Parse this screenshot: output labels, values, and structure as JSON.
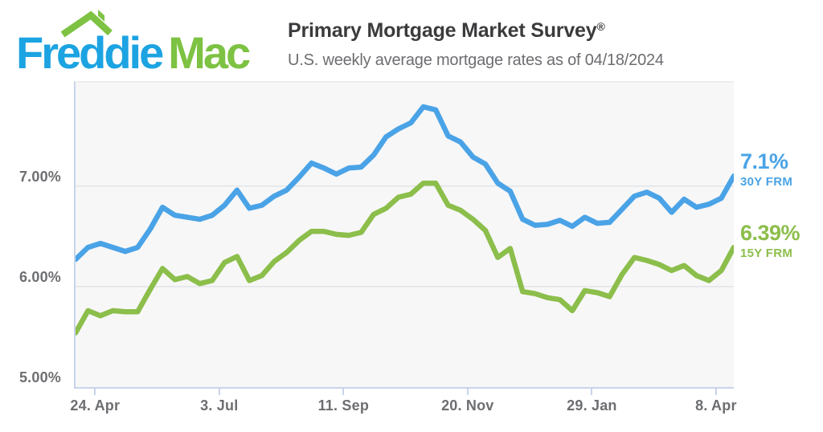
{
  "logo": {
    "word1": "Freddie",
    "word2": "Mac",
    "blue": "#1CA3E2",
    "green": "#7DC242",
    "roof_icon": "house-roof-with-chimney"
  },
  "header": {
    "title": "Primary Mortgage Market Survey",
    "registered_mark": "®",
    "subtitle": "U.S. weekly average mortgage rates as of 04/18/2024"
  },
  "chart_data": {
    "type": "line",
    "title": "Primary Mortgage Market Survey",
    "subtitle": "U.S. weekly average mortgage rates as of 04/18/2024",
    "x_frequency": "weekly",
    "x_tick_labels": [
      "24. Apr",
      "3. Jul",
      "11. Sep",
      "20. Nov",
      "29. Jan",
      "8. Apr"
    ],
    "x_tick_positions_weeks": [
      1.57,
      11.57,
      21.57,
      31.57,
      41.57,
      51.57
    ],
    "y_ticks": [
      {
        "label": "7.00%",
        "value": 7.0
      },
      {
        "label": "6.00%",
        "value": 6.0
      },
      {
        "label": "5.00%",
        "value": 5.0
      }
    ],
    "ylim": [
      5.0,
      8.03
    ],
    "grid": "horizontal",
    "legend_position": "right-of-line-ends",
    "plot_bg": "#f7f7f8",
    "gridline_color": "#e3e4e7",
    "axis_color": "#c9d3ec",
    "label_color": "#6d6e71",
    "series": [
      {
        "name": "30Y FRM",
        "color": "#4AA3E6",
        "end_label": {
          "rate": "7.1%",
          "product": "30Y FRM"
        },
        "values": [
          6.27,
          6.39,
          6.43,
          6.39,
          6.35,
          6.39,
          6.57,
          6.79,
          6.71,
          6.69,
          6.67,
          6.71,
          6.81,
          6.96,
          6.78,
          6.81,
          6.9,
          6.96,
          7.09,
          7.23,
          7.18,
          7.12,
          7.18,
          7.19,
          7.31,
          7.49,
          7.57,
          7.63,
          7.79,
          7.76,
          7.5,
          7.44,
          7.29,
          7.22,
          7.03,
          6.95,
          6.67,
          6.61,
          6.62,
          6.66,
          6.6,
          6.69,
          6.63,
          6.64,
          6.77,
          6.9,
          6.94,
          6.88,
          6.74,
          6.87,
          6.79,
          6.82,
          6.88,
          7.1
        ]
      },
      {
        "name": "15Y FRM",
        "color": "#8CBE4B",
        "end_label": {
          "rate": "6.39%",
          "product": "15Y FRM"
        },
        "values": [
          5.54,
          5.76,
          5.71,
          5.76,
          5.75,
          5.75,
          5.97,
          6.18,
          6.07,
          6.1,
          6.03,
          6.06,
          6.24,
          6.3,
          6.06,
          6.11,
          6.25,
          6.34,
          6.46,
          6.55,
          6.55,
          6.52,
          6.51,
          6.54,
          6.72,
          6.78,
          6.89,
          6.92,
          7.03,
          7.03,
          6.81,
          6.76,
          6.67,
          6.56,
          6.29,
          6.38,
          5.95,
          5.93,
          5.89,
          5.87,
          5.76,
          5.96,
          5.94,
          5.9,
          6.12,
          6.29,
          6.26,
          6.22,
          6.16,
          6.21,
          6.11,
          6.06,
          6.16,
          6.39
        ]
      }
    ]
  }
}
